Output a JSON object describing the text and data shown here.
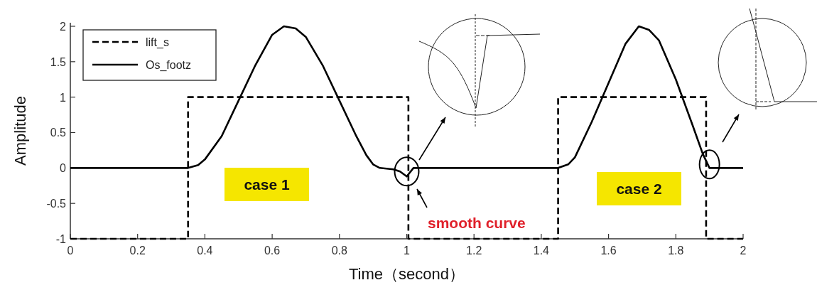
{
  "chart_data": {
    "type": "line",
    "xlabel": "Time（second）",
    "ylabel": "Amplitude",
    "xlim": [
      0,
      2
    ],
    "xticks": [
      0,
      0.2,
      0.4,
      0.6,
      0.8,
      1,
      1.2,
      1.4,
      1.6,
      1.8,
      2
    ],
    "ylim": [
      -1,
      2.05
    ],
    "yticks": [
      -1,
      -0.5,
      0,
      0.5,
      1,
      1.5,
      2
    ],
    "grid": false,
    "legend": "top left",
    "series": [
      {
        "name": "lift_s",
        "color": "#000000",
        "line_style": "dashed",
        "x": [
          0,
          0.35,
          0.35,
          1.005,
          1.005,
          1.45,
          1.45,
          1.89,
          1.89,
          2
        ],
        "values": [
          -1,
          -1,
          1,
          1,
          -1,
          -1,
          1,
          1,
          -1,
          -1
        ]
      },
      {
        "name": "Os_footz",
        "color": "#000000",
        "line_style": "solid",
        "x": [
          0,
          0.35,
          0.38,
          0.4,
          0.45,
          0.5,
          0.55,
          0.6,
          0.635,
          0.67,
          0.7,
          0.75,
          0.8,
          0.85,
          0.88,
          0.9,
          0.92,
          0.96,
          0.98,
          1.0,
          1.02,
          1.45,
          1.48,
          1.5,
          1.55,
          1.6,
          1.65,
          1.69,
          1.72,
          1.75,
          1.8,
          1.85,
          1.88,
          1.9,
          2
        ],
        "values": [
          0,
          0,
          0.04,
          0.12,
          0.45,
          0.95,
          1.45,
          1.88,
          2.0,
          1.97,
          1.85,
          1.45,
          0.95,
          0.45,
          0.18,
          0.05,
          0,
          -0.02,
          -0.05,
          -0.12,
          0,
          0,
          0.05,
          0.15,
          0.65,
          1.2,
          1.75,
          2.0,
          1.95,
          1.8,
          1.25,
          0.6,
          0.2,
          0,
          0
        ]
      }
    ],
    "annotations": [
      "case 1",
      "case 2",
      "smooth curve"
    ]
  }
}
